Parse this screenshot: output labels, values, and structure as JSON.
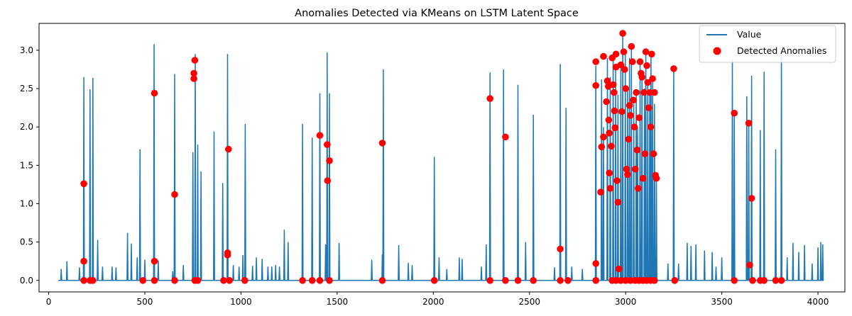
{
  "chart_data": {
    "type": "line",
    "title": "Anomalies Detected via KMeans on LSTM Latent Space",
    "xlabel": "",
    "ylabel": "",
    "xlim": [
      -50,
      4140
    ],
    "ylim": [
      -0.15,
      3.35
    ],
    "xticks": [
      0,
      500,
      1000,
      1500,
      2000,
      2500,
      3000,
      3500,
      4000
    ],
    "yticks": [
      0.0,
      0.5,
      1.0,
      1.5,
      2.0,
      2.5,
      3.0
    ],
    "ytick_labels": [
      "0.0",
      "0.5",
      "1.0",
      "1.5",
      "2.0",
      "2.5",
      "3.0"
    ],
    "grid": false,
    "legend": "top-right",
    "colors": {
      "line": "#1f77b4",
      "anomaly": "#ff0000"
    },
    "series": [
      {
        "name": "Value",
        "type": "line",
        "baseline": 0,
        "x_start": 50,
        "x_end": 4030,
        "spikes": [
          [
            65,
            0.15
          ],
          [
            95,
            0.25
          ],
          [
            160,
            0.17
          ],
          [
            183,
            2.65
          ],
          [
            215,
            2.49
          ],
          [
            230,
            2.64
          ],
          [
            255,
            0.53
          ],
          [
            280,
            0.18
          ],
          [
            330,
            0.18
          ],
          [
            350,
            0.17
          ],
          [
            410,
            0.62
          ],
          [
            430,
            0.48
          ],
          [
            460,
            0.3
          ],
          [
            475,
            1.71
          ],
          [
            500,
            0.27
          ],
          [
            548,
            3.08
          ],
          [
            570,
            0.26
          ],
          [
            645,
            0.12
          ],
          [
            655,
            2.69
          ],
          [
            700,
            0.2
          ],
          [
            750,
            1.67
          ],
          [
            762,
            2.95
          ],
          [
            775,
            1.77
          ],
          [
            792,
            1.42
          ],
          [
            860,
            1.94
          ],
          [
            905,
            1.27
          ],
          [
            930,
            2.95
          ],
          [
            960,
            0.2
          ],
          [
            990,
            0.18
          ],
          [
            1010,
            0.33
          ],
          [
            1022,
            2.04
          ],
          [
            1060,
            0.19
          ],
          [
            1080,
            0.3
          ],
          [
            1110,
            0.28
          ],
          [
            1140,
            0.18
          ],
          [
            1160,
            0.18
          ],
          [
            1180,
            0.2
          ],
          [
            1200,
            0.18
          ],
          [
            1225,
            0.66
          ],
          [
            1245,
            0.5
          ],
          [
            1320,
            2.04
          ],
          [
            1370,
            1.86
          ],
          [
            1410,
            2.44
          ],
          [
            1440,
            0.47
          ],
          [
            1448,
            2.97
          ],
          [
            1460,
            2.44
          ],
          [
            1510,
            0.49
          ],
          [
            1680,
            0.27
          ],
          [
            1735,
            0.34
          ],
          [
            1740,
            2.75
          ],
          [
            1820,
            0.46
          ],
          [
            1870,
            0.23
          ],
          [
            1890,
            0.2
          ],
          [
            2005,
            1.61
          ],
          [
            2030,
            0.3
          ],
          [
            2070,
            0.15
          ],
          [
            2135,
            0.3
          ],
          [
            2150,
            0.28
          ],
          [
            2250,
            0.18
          ],
          [
            2275,
            0.47
          ],
          [
            2295,
            2.71
          ],
          [
            2365,
            2.75
          ],
          [
            2440,
            2.55
          ],
          [
            2480,
            0.5
          ],
          [
            2520,
            2.16
          ],
          [
            2630,
            0.17
          ],
          [
            2660,
            2.82
          ],
          [
            2690,
            2.25
          ],
          [
            2720,
            0.18
          ],
          [
            2775,
            0.15
          ],
          [
            2845,
            2.8
          ],
          [
            2875,
            2.62
          ],
          [
            2885,
            2.0
          ],
          [
            2905,
            2.9
          ],
          [
            2920,
            2.65
          ],
          [
            2935,
            2.95
          ],
          [
            2948,
            2.75
          ],
          [
            2960,
            2.42
          ],
          [
            2975,
            2.8
          ],
          [
            2985,
            3.22
          ],
          [
            2998,
            2.98
          ],
          [
            3010,
            2.5
          ],
          [
            3020,
            2.9
          ],
          [
            3030,
            3.05
          ],
          [
            3042,
            2.3
          ],
          [
            3055,
            2.45
          ],
          [
            3062,
            2.0
          ],
          [
            3075,
            2.85
          ],
          [
            3085,
            2.7
          ],
          [
            3098,
            2.5
          ],
          [
            3105,
            2.98
          ],
          [
            3115,
            2.6
          ],
          [
            3125,
            2.45
          ],
          [
            3132,
            2.95
          ],
          [
            3140,
            2.6
          ],
          [
            3150,
            2.3
          ],
          [
            3160,
            1.35
          ],
          [
            3220,
            0.22
          ],
          [
            3250,
            2.76
          ],
          [
            3275,
            0.22
          ],
          [
            3320,
            0.49
          ],
          [
            3340,
            0.45
          ],
          [
            3365,
            0.47
          ],
          [
            3410,
            0.39
          ],
          [
            3450,
            0.37
          ],
          [
            3470,
            0.18
          ],
          [
            3500,
            0.3
          ],
          [
            3555,
            2.88
          ],
          [
            3565,
            2.18
          ],
          [
            3630,
            2.4
          ],
          [
            3640,
            2.05
          ],
          [
            3655,
            2.67
          ],
          [
            3700,
            1.96
          ],
          [
            3720,
            2.72
          ],
          [
            3780,
            1.71
          ],
          [
            3810,
            3.0
          ],
          [
            3840,
            0.3
          ],
          [
            3870,
            0.49
          ],
          [
            3900,
            0.37
          ],
          [
            3930,
            0.46
          ],
          [
            3970,
            0.22
          ],
          [
            4000,
            0.43
          ],
          [
            4015,
            0.5
          ],
          [
            4025,
            0.47
          ]
        ]
      },
      {
        "name": "Detected Anomalies",
        "type": "scatter",
        "points": [
          [
            183,
            1.26
          ],
          [
            183,
            0.25
          ],
          [
            183,
            0.0
          ],
          [
            215,
            0.0
          ],
          [
            230,
            0.0
          ],
          [
            490,
            0.0
          ],
          [
            550,
            2.44
          ],
          [
            550,
            0.25
          ],
          [
            550,
            0.0
          ],
          [
            655,
            1.12
          ],
          [
            655,
            0.0
          ],
          [
            755,
            2.63
          ],
          [
            755,
            2.7
          ],
          [
            760,
            2.87
          ],
          [
            760,
            0.0
          ],
          [
            775,
            0.0
          ],
          [
            910,
            0.0
          ],
          [
            930,
            0.36
          ],
          [
            930,
            0.33
          ],
          [
            935,
            1.71
          ],
          [
            940,
            0.0
          ],
          [
            1020,
            0.0
          ],
          [
            1320,
            0.0
          ],
          [
            1370,
            0.0
          ],
          [
            1410,
            1.89
          ],
          [
            1410,
            0.0
          ],
          [
            1448,
            1.77
          ],
          [
            1450,
            1.3
          ],
          [
            1460,
            1.56
          ],
          [
            1460,
            0.0
          ],
          [
            1735,
            1.79
          ],
          [
            1735,
            0.0
          ],
          [
            2005,
            0.0
          ],
          [
            2295,
            2.37
          ],
          [
            2295,
            0.0
          ],
          [
            2375,
            1.87
          ],
          [
            2375,
            0.0
          ],
          [
            2440,
            0.0
          ],
          [
            2520,
            0.0
          ],
          [
            2660,
            0.41
          ],
          [
            2660,
            0.0
          ],
          [
            2700,
            0.0
          ],
          [
            2845,
            2.85
          ],
          [
            2845,
            2.54
          ],
          [
            2845,
            0.22
          ],
          [
            2845,
            0.0
          ],
          [
            2870,
            1.15
          ],
          [
            2875,
            1.74
          ],
          [
            2885,
            1.87
          ],
          [
            2885,
            2.92
          ],
          [
            2900,
            2.33
          ],
          [
            2905,
            2.6
          ],
          [
            2910,
            2.53
          ],
          [
            2912,
            2.09
          ],
          [
            2915,
            1.92
          ],
          [
            2915,
            1.4
          ],
          [
            2920,
            1.2
          ],
          [
            2925,
            1.75
          ],
          [
            2930,
            2.9
          ],
          [
            2935,
            2.55
          ],
          [
            2940,
            2.45
          ],
          [
            2942,
            2.21
          ],
          [
            2945,
            1.99
          ],
          [
            2950,
            2.95
          ],
          [
            2950,
            2.78
          ],
          [
            2955,
            1.3
          ],
          [
            2960,
            1.02
          ],
          [
            2965,
            0.15
          ],
          [
            2975,
            2.81
          ],
          [
            2980,
            2.2
          ],
          [
            2985,
            3.22
          ],
          [
            2990,
            2.98
          ],
          [
            2995,
            2.75
          ],
          [
            3000,
            2.5
          ],
          [
            3005,
            1.45
          ],
          [
            3010,
            1.38
          ],
          [
            3015,
            1.84
          ],
          [
            3020,
            2.28
          ],
          [
            3025,
            2.15
          ],
          [
            3030,
            3.05
          ],
          [
            3035,
            2.85
          ],
          [
            3040,
            2.35
          ],
          [
            3045,
            2.0
          ],
          [
            3050,
            1.45
          ],
          [
            3055,
            2.45
          ],
          [
            3060,
            1.7
          ],
          [
            3065,
            1.2
          ],
          [
            3070,
            2.12
          ],
          [
            3075,
            2.85
          ],
          [
            3080,
            2.7
          ],
          [
            3085,
            2.65
          ],
          [
            3090,
            1.33
          ],
          [
            3095,
            2.45
          ],
          [
            3100,
            1.65
          ],
          [
            3105,
            2.98
          ],
          [
            3110,
            2.8
          ],
          [
            3115,
            2.58
          ],
          [
            3120,
            2.25
          ],
          [
            3125,
            2.45
          ],
          [
            3130,
            2.0
          ],
          [
            3135,
            2.95
          ],
          [
            3140,
            2.63
          ],
          [
            3145,
            1.65
          ],
          [
            3150,
            2.45
          ],
          [
            3155,
            1.37
          ],
          [
            3160,
            1.33
          ],
          [
            2930,
            0.0
          ],
          [
            2950,
            0.0
          ],
          [
            2975,
            0.0
          ],
          [
            3000,
            0.0
          ],
          [
            3025,
            0.0
          ],
          [
            3050,
            0.0
          ],
          [
            3070,
            0.0
          ],
          [
            3090,
            0.0
          ],
          [
            3110,
            0.0
          ],
          [
            3130,
            0.0
          ],
          [
            3150,
            0.0
          ],
          [
            3250,
            2.76
          ],
          [
            3255,
            0.0
          ],
          [
            3565,
            2.18
          ],
          [
            3565,
            0.0
          ],
          [
            3640,
            2.05
          ],
          [
            3645,
            0.2
          ],
          [
            3655,
            1.07
          ],
          [
            3660,
            0.0
          ],
          [
            3700,
            0.0
          ],
          [
            3720,
            0.0
          ],
          [
            3780,
            0.0
          ],
          [
            3810,
            0.0
          ]
        ]
      }
    ]
  }
}
